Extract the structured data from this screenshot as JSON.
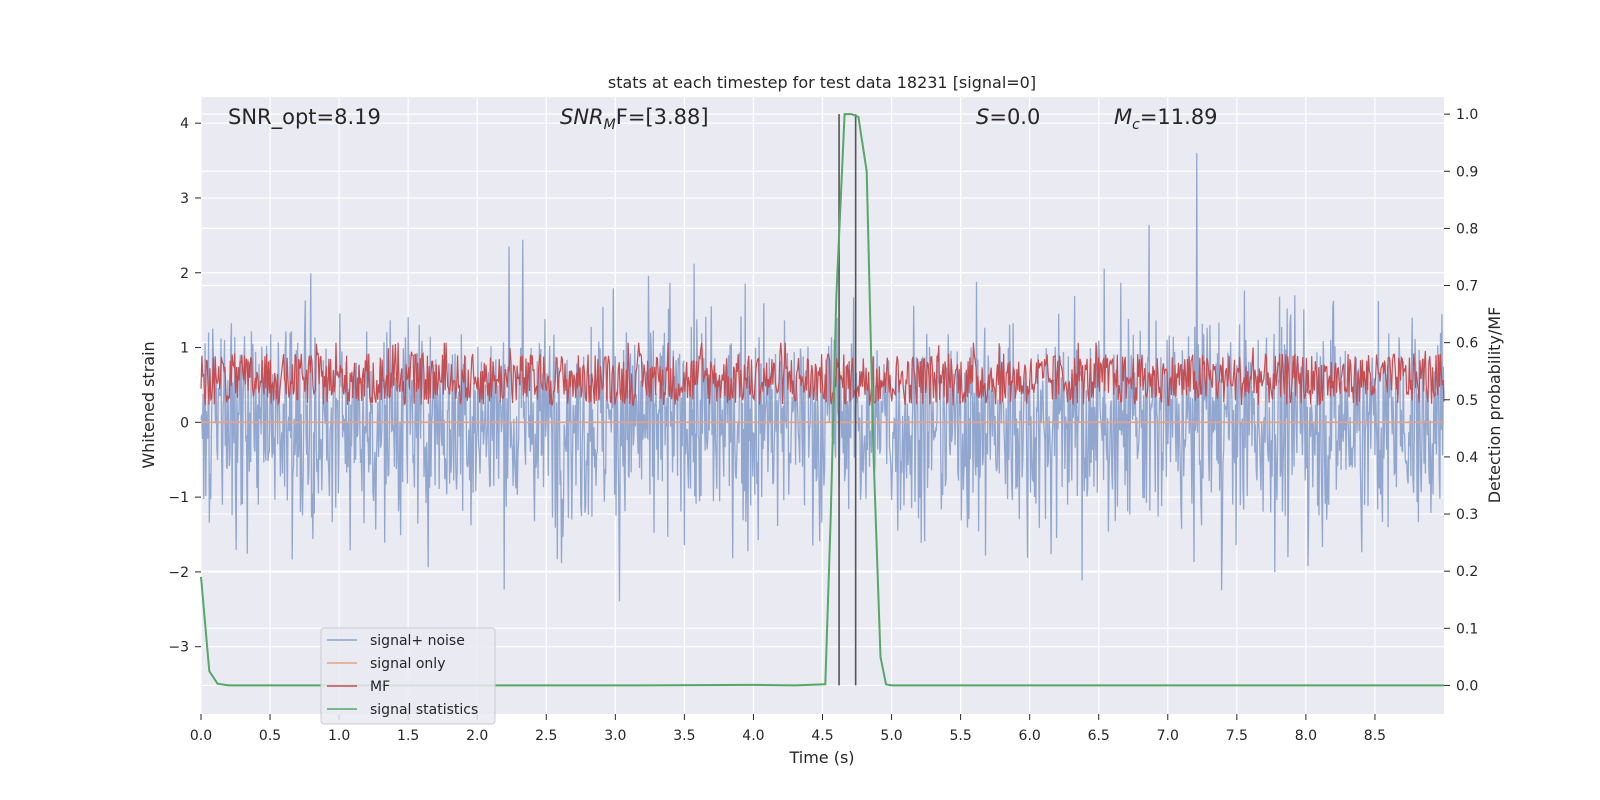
{
  "chart_data": {
    "type": "line",
    "title": "stats at each timestep for test data 18231 [signal=0]",
    "xlabel": "Time (s)",
    "ylabel_left": "Whitened strain",
    "ylabel_right": "Detection probability/MF",
    "xlim": [
      0.0,
      9.0
    ],
    "ylim_left": [
      -3.9,
      4.35
    ],
    "ylim_right": [
      -0.05,
      1.03
    ],
    "x_ticks": [
      "0.0",
      "0.5",
      "1.0",
      "1.5",
      "2.0",
      "2.5",
      "3.0",
      "3.5",
      "4.0",
      "4.5",
      "5.0",
      "5.5",
      "6.0",
      "6.5",
      "7.0",
      "7.5",
      "8.0",
      "8.5"
    ],
    "y_ticks_left": [
      "4",
      "3",
      "2",
      "1",
      "0",
      "−1",
      "−2",
      "−3"
    ],
    "y_ticks_right": [
      "1.0",
      "0.9",
      "0.8",
      "0.7",
      "0.6",
      "0.5",
      "0.4",
      "0.3",
      "0.2",
      "0.1",
      "0.0"
    ],
    "grid": true,
    "annotations": {
      "snr_opt": "SNR_opt=8.19",
      "snr_mf_main": "SNR",
      "snr_mf_sub": "M",
      "snr_mf_rest": "F=[3.88]",
      "s_main": "S",
      "s_rest": "=0.0",
      "mc_main": "M",
      "mc_sub": "c",
      "mc_rest": "=11.89"
    },
    "vertical_markers": [
      4.62,
      4.74
    ],
    "series": [
      {
        "name": "signal+ noise",
        "axis": "left",
        "color": "#8da3cc",
        "description": "whitened noise, spread approx -3 to +3"
      },
      {
        "name": "signal only",
        "axis": "left",
        "color": "#e8a087",
        "values_const": 0.0
      },
      {
        "name": "MF",
        "axis": "right",
        "color": "#c44e52",
        "baseline": 0.5,
        "range": [
          0.47,
          0.6
        ]
      },
      {
        "name": "signal statistics",
        "axis": "right",
        "color": "#55a868",
        "x": [
          0.0,
          0.06,
          0.12,
          0.2,
          0.5,
          1.0,
          2.0,
          3.0,
          4.0,
          4.3,
          4.52,
          4.56,
          4.6,
          4.66,
          4.71,
          4.76,
          4.82,
          4.87,
          4.92,
          4.96,
          5.0,
          6.0,
          7.0,
          8.0,
          9.0
        ],
        "values": [
          0.19,
          0.025,
          0.003,
          0.0,
          0.0,
          0.0,
          0.0,
          0.0,
          0.001,
          0.0,
          0.002,
          0.3,
          0.68,
          1.0,
          1.0,
          0.995,
          0.9,
          0.4,
          0.05,
          0.002,
          0.0,
          0.0,
          0.0,
          0.0,
          0.0
        ]
      }
    ],
    "legend": {
      "placement": "lower-left",
      "entries": [
        "signal+ noise",
        "signal only",
        "MF",
        "signal statistics"
      ]
    }
  }
}
